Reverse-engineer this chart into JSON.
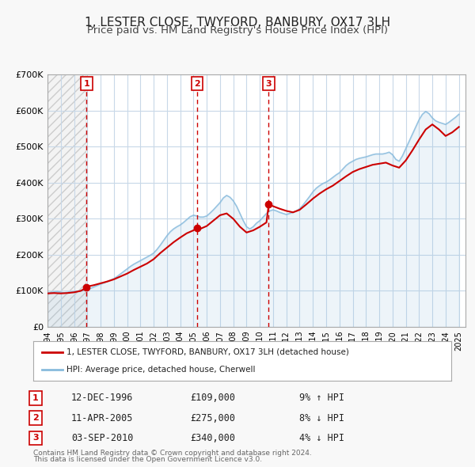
{
  "title": "1, LESTER CLOSE, TWYFORD, BANBURY, OX17 3LH",
  "subtitle": "Price paid vs. HM Land Registry's House Price Index (HPI)",
  "ylabel": "",
  "ylim": [
    0,
    700000
  ],
  "yticks": [
    0,
    100000,
    200000,
    300000,
    400000,
    500000,
    600000,
    700000
  ],
  "ytick_labels": [
    "£0",
    "£100K",
    "£200K",
    "£300K",
    "£400K",
    "£500K",
    "£600K",
    "£700K"
  ],
  "xlim_start": 1994.0,
  "xlim_end": 2025.5,
  "xticks": [
    1994,
    1995,
    1996,
    1997,
    1998,
    1999,
    2000,
    2001,
    2002,
    2003,
    2004,
    2005,
    2006,
    2007,
    2008,
    2009,
    2010,
    2011,
    2012,
    2013,
    2014,
    2015,
    2016,
    2017,
    2018,
    2019,
    2020,
    2021,
    2022,
    2023,
    2024,
    2025
  ],
  "background_color": "#f8f8f8",
  "plot_bg_color": "#ffffff",
  "grid_color": "#c8d8e8",
  "red_line_color": "#cc0000",
  "blue_line_color": "#88bbdd",
  "sale_marker_color": "#cc0000",
  "dashed_line_color": "#cc0000",
  "title_fontsize": 11,
  "subtitle_fontsize": 9.5,
  "legend_label_red": "1, LESTER CLOSE, TWYFORD, BANBURY, OX17 3LH (detached house)",
  "legend_label_blue": "HPI: Average price, detached house, Cherwell",
  "transactions": [
    {
      "num": 1,
      "date": "12-DEC-1996",
      "year": 1996.95,
      "price": 109000,
      "hpi_note": "9% ↑ HPI"
    },
    {
      "num": 2,
      "date": "11-APR-2005",
      "year": 2005.28,
      "price": 275000,
      "hpi_note": "8% ↓ HPI"
    },
    {
      "num": 3,
      "date": "03-SEP-2010",
      "year": 2010.67,
      "price": 340000,
      "hpi_note": "4% ↓ HPI"
    }
  ],
  "footer_line1": "Contains HM Land Registry data © Crown copyright and database right 2024.",
  "footer_line2": "This data is licensed under the Open Government Licence v3.0.",
  "hpi_data": {
    "years": [
      1994.0,
      1994.25,
      1994.5,
      1994.75,
      1995.0,
      1995.25,
      1995.5,
      1995.75,
      1996.0,
      1996.25,
      1996.5,
      1996.75,
      1997.0,
      1997.25,
      1997.5,
      1997.75,
      1998.0,
      1998.25,
      1998.5,
      1998.75,
      1999.0,
      1999.25,
      1999.5,
      1999.75,
      2000.0,
      2000.25,
      2000.5,
      2000.75,
      2001.0,
      2001.25,
      2001.5,
      2001.75,
      2002.0,
      2002.25,
      2002.5,
      2002.75,
      2003.0,
      2003.25,
      2003.5,
      2003.75,
      2004.0,
      2004.25,
      2004.5,
      2004.75,
      2005.0,
      2005.25,
      2005.5,
      2005.75,
      2006.0,
      2006.25,
      2006.5,
      2006.75,
      2007.0,
      2007.25,
      2007.5,
      2007.75,
      2008.0,
      2008.25,
      2008.5,
      2008.75,
      2009.0,
      2009.25,
      2009.5,
      2009.75,
      2010.0,
      2010.25,
      2010.5,
      2010.75,
      2011.0,
      2011.25,
      2011.5,
      2011.75,
      2012.0,
      2012.25,
      2012.5,
      2012.75,
      2013.0,
      2013.25,
      2013.5,
      2013.75,
      2014.0,
      2014.25,
      2014.5,
      2014.75,
      2015.0,
      2015.25,
      2015.5,
      2015.75,
      2016.0,
      2016.25,
      2016.5,
      2016.75,
      2017.0,
      2017.25,
      2017.5,
      2017.75,
      2018.0,
      2018.25,
      2018.5,
      2018.75,
      2019.0,
      2019.25,
      2019.5,
      2019.75,
      2020.0,
      2020.25,
      2020.5,
      2020.75,
      2021.0,
      2021.25,
      2021.5,
      2021.75,
      2022.0,
      2022.25,
      2022.5,
      2022.75,
      2023.0,
      2023.25,
      2023.5,
      2023.75,
      2024.0,
      2024.25,
      2024.5,
      2024.75,
      2025.0
    ],
    "values": [
      95000,
      96000,
      97000,
      98000,
      96000,
      95000,
      96000,
      97000,
      98000,
      99000,
      100000,
      101000,
      103000,
      107000,
      111000,
      115000,
      119000,
      122000,
      126000,
      130000,
      134000,
      140000,
      147000,
      154000,
      161000,
      168000,
      174000,
      179000,
      184000,
      189000,
      194000,
      199000,
      205000,
      215000,
      227000,
      240000,
      253000,
      264000,
      272000,
      278000,
      283000,
      290000,
      298000,
      306000,
      310000,
      308000,
      305000,
      305000,
      308000,
      316000,
      325000,
      335000,
      345000,
      358000,
      365000,
      360000,
      350000,
      335000,
      315000,
      295000,
      278000,
      272000,
      278000,
      288000,
      295000,
      305000,
      315000,
      322000,
      325000,
      322000,
      318000,
      315000,
      312000,
      315000,
      318000,
      322000,
      328000,
      338000,
      350000,
      362000,
      375000,
      385000,
      392000,
      398000,
      402000,
      408000,
      415000,
      422000,
      428000,
      438000,
      448000,
      455000,
      460000,
      465000,
      468000,
      470000,
      472000,
      475000,
      478000,
      480000,
      480000,
      480000,
      482000,
      485000,
      478000,
      465000,
      460000,
      475000,
      495000,
      515000,
      535000,
      555000,
      575000,
      590000,
      598000,
      592000,
      580000,
      572000,
      568000,
      565000,
      562000,
      568000,
      575000,
      582000,
      590000
    ]
  },
  "price_data": {
    "years": [
      1994.0,
      1994.5,
      1995.0,
      1995.5,
      1996.0,
      1996.5,
      1996.95,
      1997.0,
      1997.5,
      1998.0,
      1998.5,
      1999.0,
      1999.5,
      2000.0,
      2000.5,
      2001.0,
      2001.5,
      2002.0,
      2002.5,
      2003.0,
      2003.5,
      2004.0,
      2004.5,
      2005.0,
      2005.28,
      2005.5,
      2006.0,
      2006.5,
      2007.0,
      2007.5,
      2008.0,
      2008.5,
      2009.0,
      2009.5,
      2010.0,
      2010.5,
      2010.67,
      2011.0,
      2011.5,
      2012.0,
      2012.5,
      2013.0,
      2013.5,
      2014.0,
      2014.5,
      2015.0,
      2015.5,
      2016.0,
      2016.5,
      2017.0,
      2017.5,
      2018.0,
      2018.5,
      2019.0,
      2019.5,
      2020.0,
      2020.5,
      2021.0,
      2021.5,
      2022.0,
      2022.5,
      2023.0,
      2023.5,
      2024.0,
      2024.5,
      2025.0
    ],
    "values": [
      93000,
      94000,
      93000,
      94000,
      96000,
      100000,
      109000,
      112000,
      116000,
      121000,
      126000,
      132000,
      140000,
      148000,
      158000,
      167000,
      176000,
      188000,
      205000,
      220000,
      235000,
      248000,
      260000,
      268000,
      275000,
      272000,
      280000,
      295000,
      310000,
      315000,
      300000,
      278000,
      262000,
      268000,
      278000,
      290000,
      340000,
      335000,
      328000,
      322000,
      318000,
      325000,
      340000,
      356000,
      370000,
      382000,
      392000,
      405000,
      418000,
      430000,
      438000,
      444000,
      450000,
      453000,
      456000,
      448000,
      442000,
      462000,
      490000,
      520000,
      548000,
      562000,
      548000,
      530000,
      540000,
      555000
    ]
  }
}
